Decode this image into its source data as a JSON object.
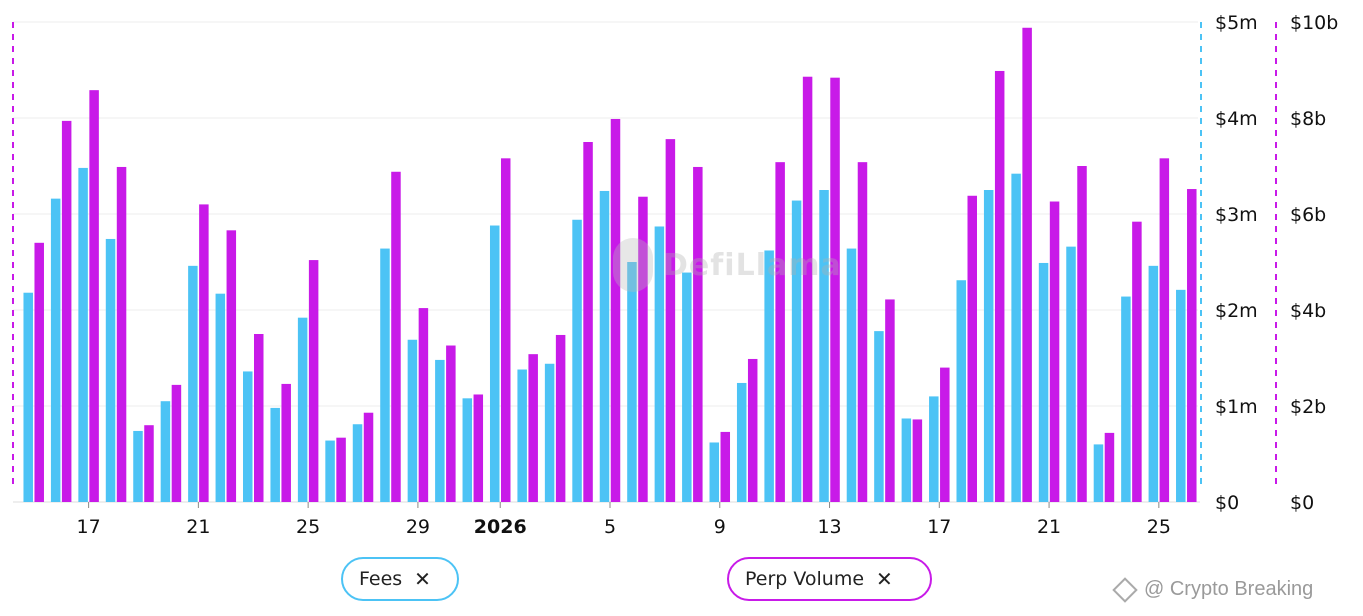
{
  "chart_data": {
    "type": "bar",
    "title": "",
    "xlabel": "",
    "x_tick_labels": [
      {
        "label": "17",
        "index": 2,
        "bold": false
      },
      {
        "label": "21",
        "index": 6,
        "bold": false
      },
      {
        "label": "25",
        "index": 10,
        "bold": false
      },
      {
        "label": "29",
        "index": 14,
        "bold": false
      },
      {
        "label": "2026",
        "index": 17,
        "bold": true
      },
      {
        "label": "5",
        "index": 21,
        "bold": false
      },
      {
        "label": "9",
        "index": 25,
        "bold": false
      },
      {
        "label": "13",
        "index": 29,
        "bold": false
      },
      {
        "label": "17",
        "index": 33,
        "bold": false
      },
      {
        "label": "21",
        "index": 37,
        "bold": false
      },
      {
        "label": "25",
        "index": 41,
        "bold": false
      }
    ],
    "y_left": {
      "ticks": [
        "$0",
        "$1m",
        "$2m",
        "$3m",
        "$4m",
        "$5m"
      ],
      "max": 5000000
    },
    "y_right": {
      "ticks": [
        "$0",
        "$2b",
        "$4b",
        "$6b",
        "$8b",
        "$10b"
      ],
      "max": 10000000000
    },
    "grid": true,
    "series": [
      {
        "name": "Fees",
        "axis": "left",
        "color": "#4cc3f5",
        "values": [
          2.18,
          3.16,
          3.48,
          2.74,
          0.74,
          1.05,
          2.46,
          2.17,
          1.36,
          0.98,
          1.92,
          0.64,
          0.81,
          2.64,
          1.69,
          1.48,
          1.08,
          2.88,
          1.38,
          1.44,
          2.94,
          3.24,
          2.5,
          2.87,
          2.39,
          0.62,
          1.24,
          2.62,
          3.14,
          3.25,
          2.64,
          1.78,
          0.87,
          1.1,
          2.31,
          3.25,
          3.42,
          2.49,
          2.66,
          0.6,
          2.14,
          2.46,
          2.21
        ]
      },
      {
        "name": "Perp Volume",
        "axis": "right",
        "color": "#c81ae8",
        "values": [
          5.4,
          7.94,
          8.58,
          6.98,
          1.6,
          2.44,
          6.2,
          5.66,
          3.5,
          2.46,
          5.04,
          1.34,
          1.86,
          6.88,
          4.04,
          3.26,
          2.24,
          7.16,
          3.08,
          3.48,
          7.5,
          7.98,
          6.36,
          7.56,
          6.98,
          1.46,
          2.98,
          7.08,
          8.86,
          8.84,
          7.08,
          4.22,
          1.72,
          2.8,
          6.38,
          8.98,
          9.88,
          6.26,
          7.0,
          1.44,
          5.84,
          7.16,
          6.52
        ]
      }
    ],
    "legend": [
      "Fees",
      "Perp Volume"
    ],
    "legend_placement": "bottom"
  },
  "legend_buttons": {
    "fees_label": "Fees",
    "perp_label": "Perp Volume",
    "remove_glyph": "✕"
  },
  "watermark_text": "DefiLlama",
  "credit_text": "@ Crypto Breaking"
}
